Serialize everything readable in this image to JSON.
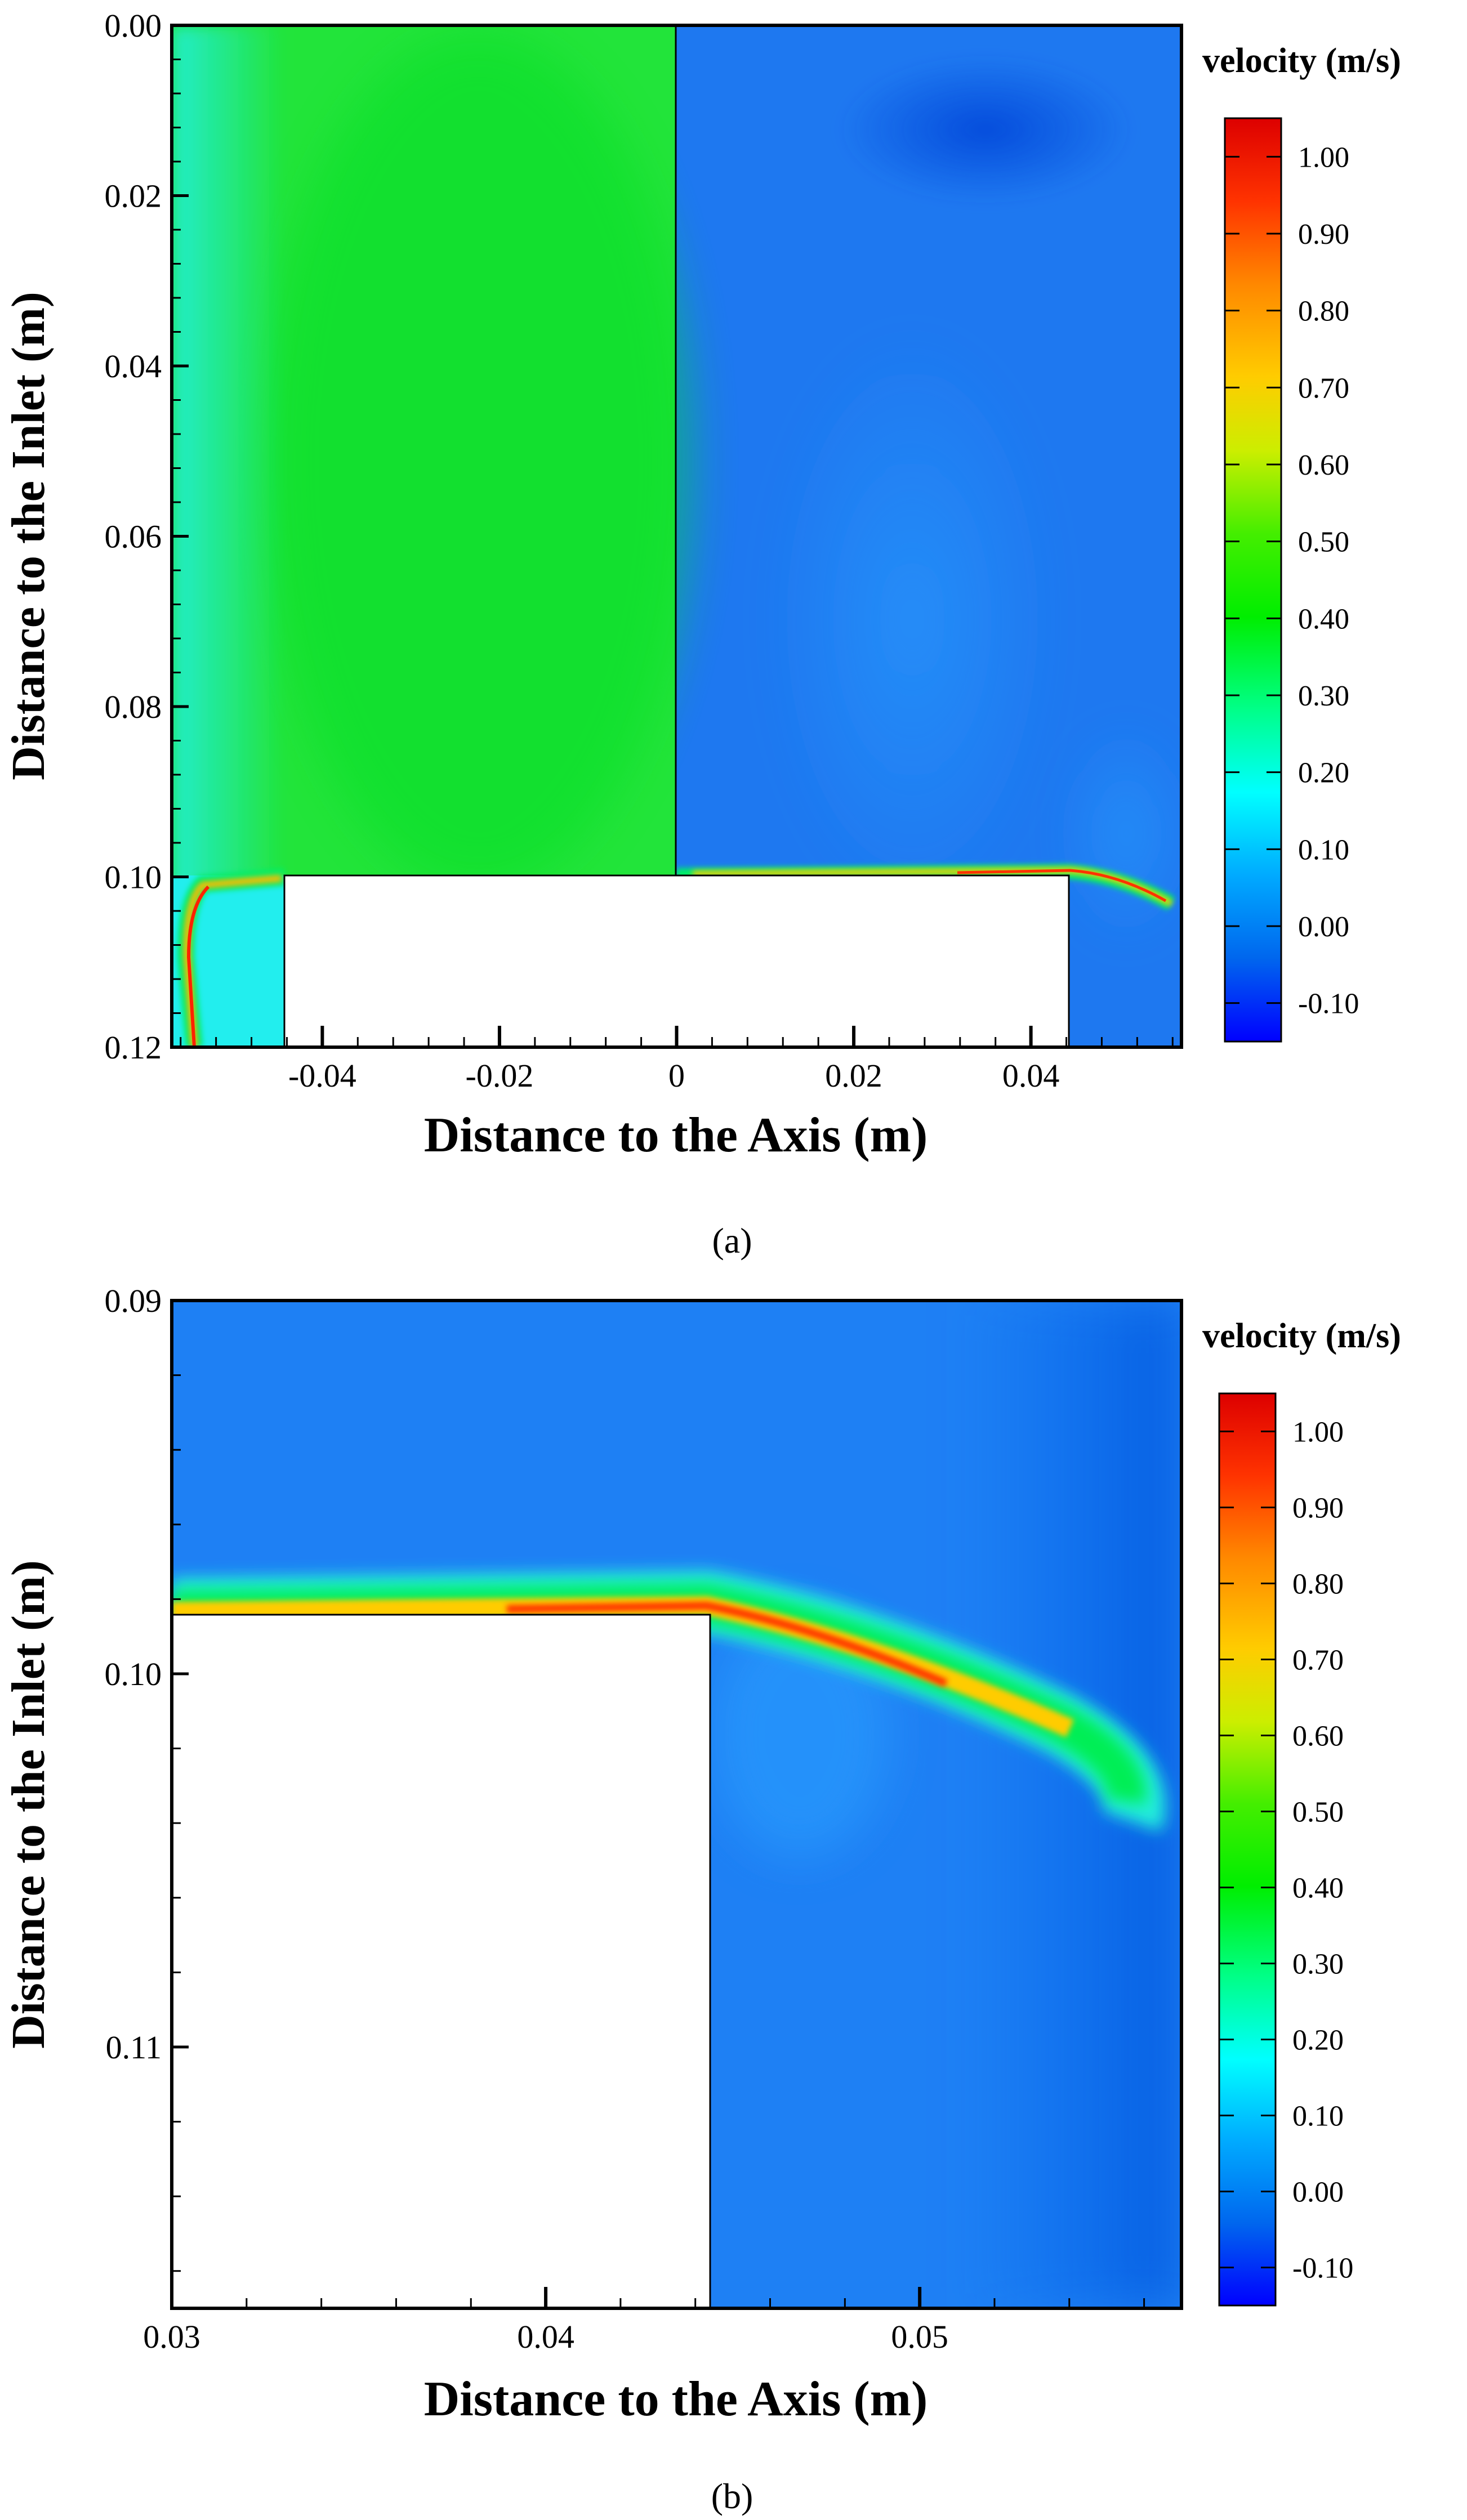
{
  "chart_data": [
    {
      "panel_label": "(a)",
      "type": "heatmap",
      "xlabel": "Distance to the Axis (m)",
      "ylabel": "Distance to the Inlet (m)",
      "xlim": [
        -0.057,
        0.057
      ],
      "ylim": [
        0.0,
        0.12
      ],
      "y_axis_inverted": true,
      "x_tick_labels": [
        "-0.04",
        "-0.02",
        "0",
        "0.02",
        "0.04"
      ],
      "x_ticks": [
        -0.04,
        -0.02,
        0,
        0.02,
        0.04
      ],
      "y_tick_labels": [
        "0.00",
        "0.02",
        "0.04",
        "0.06",
        "0.08",
        "0.10",
        "0.12"
      ],
      "y_ticks": [
        0.0,
        0.02,
        0.04,
        0.06,
        0.08,
        0.1,
        0.12
      ],
      "left_half_uniform_velocity": 0.45,
      "right_half_bulk_velocity": 0.0,
      "obstacle": {
        "x": [
          -0.044,
          0.044
        ],
        "y": [
          0.1,
          0.12
        ]
      },
      "jet_peak_velocity": 1.0,
      "colorbar": {
        "title": "velocity (m/s)",
        "min": -0.15,
        "max": 1.05,
        "tick_labels": [
          "1.00",
          "0.90",
          "0.80",
          "0.70",
          "0.60",
          "0.50",
          "0.40",
          "0.30",
          "0.20",
          "0.10",
          "0.00",
          "-0.10"
        ],
        "ticks": [
          1.0,
          0.9,
          0.8,
          0.7,
          0.6,
          0.5,
          0.4,
          0.3,
          0.2,
          0.1,
          0.0,
          -0.1
        ]
      }
    },
    {
      "panel_label": "(b)",
      "type": "heatmap",
      "xlabel": "Distance to the Axis (m)",
      "ylabel": "Distance to the Inlet (m)",
      "xlim": [
        0.03,
        0.057
      ],
      "ylim": [
        0.09,
        0.117
      ],
      "y_axis_inverted": true,
      "x_tick_labels": [
        "0.03",
        "0.04",
        "0.05"
      ],
      "x_ticks": [
        0.03,
        0.04,
        0.05
      ],
      "y_tick_labels": [
        "0.09",
        "0.10",
        "0.11"
      ],
      "y_ticks": [
        0.09,
        0.1,
        0.11
      ],
      "bulk_velocity": 0.0,
      "obstacle": {
        "x": [
          0.03,
          0.0445
        ],
        "y": [
          0.1,
          0.117
        ]
      },
      "jet_peak_velocity": 1.0,
      "colorbar": {
        "title": "velocity (m/s)",
        "min": -0.15,
        "max": 1.05,
        "tick_labels": [
          "1.00",
          "0.90",
          "0.80",
          "0.70",
          "0.60",
          "0.50",
          "0.40",
          "0.30",
          "0.20",
          "0.10",
          "0.00",
          "-0.10"
        ],
        "ticks": [
          1.0,
          0.9,
          0.8,
          0.7,
          0.6,
          0.5,
          0.4,
          0.3,
          0.2,
          0.1,
          0.0,
          -0.1
        ]
      }
    }
  ],
  "colormap": [
    "#0000ff",
    "#0066ee",
    "#00aaff",
    "#00ffff",
    "#00ff66",
    "#00ee00",
    "#66ee00",
    "#eeee00",
    "#ffaa00",
    "#ff6600",
    "#ff0000",
    "#dd0000"
  ]
}
